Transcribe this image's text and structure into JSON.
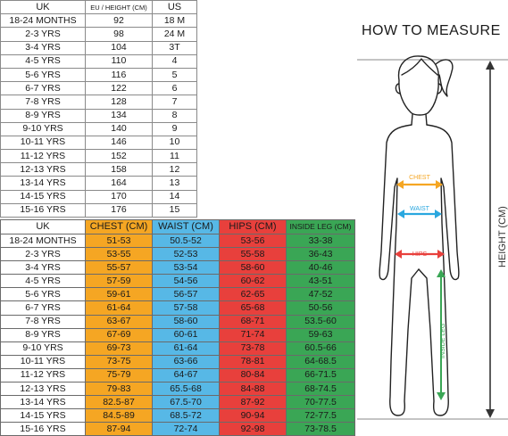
{
  "size_table": {
    "headers": [
      "UK",
      "EU / HEIGHT (CM)",
      "US"
    ],
    "rows": [
      [
        "18-24 MONTHS",
        "92",
        "18 M"
      ],
      [
        "2-3 YRS",
        "98",
        "24 M"
      ],
      [
        "3-4 YRS",
        "104",
        "3T"
      ],
      [
        "4-5 YRS",
        "110",
        "4"
      ],
      [
        "5-6 YRS",
        "116",
        "5"
      ],
      [
        "6-7 YRS",
        "122",
        "6"
      ],
      [
        "7-8 YRS",
        "128",
        "7"
      ],
      [
        "8-9 YRS",
        "134",
        "8"
      ],
      [
        "9-10 YRS",
        "140",
        "9"
      ],
      [
        "10-11 YRS",
        "146",
        "10"
      ],
      [
        "11-12 YRS",
        "152",
        "11"
      ],
      [
        "12-13 YRS",
        "158",
        "12"
      ],
      [
        "13-14 YRS",
        "164",
        "13"
      ],
      [
        "14-15 YRS",
        "170",
        "14"
      ],
      [
        "15-16 YRS",
        "176",
        "15"
      ]
    ]
  },
  "measure_table": {
    "headers": [
      "UK",
      "CHEST (CM)",
      "WAIST (CM)",
      "HIPS (CM)",
      "INSIDE LEG (CM)"
    ],
    "rows": [
      [
        "18-24 MONTHS",
        "51-53",
        "50.5-52",
        "53-56",
        "33-38"
      ],
      [
        "2-3 YRS",
        "53-55",
        "52-53",
        "55-58",
        "36-43"
      ],
      [
        "3-4 YRS",
        "55-57",
        "53-54",
        "58-60",
        "40-46"
      ],
      [
        "4-5 YRS",
        "57-59",
        "54-56",
        "60-62",
        "43-51"
      ],
      [
        "5-6 YRS",
        "59-61",
        "56-57",
        "62-65",
        "47-52"
      ],
      [
        "6-7 YRS",
        "61-64",
        "57-58",
        "65-68",
        "50-56"
      ],
      [
        "7-8 YRS",
        "63-67",
        "58-60",
        "68-71",
        "53.5-60"
      ],
      [
        "8-9 YRS",
        "67-69",
        "60-61",
        "71-74",
        "59-63"
      ],
      [
        "9-10 YRS",
        "69-73",
        "61-64",
        "73-78",
        "60.5-66"
      ],
      [
        "10-11 YRS",
        "73-75",
        "63-66",
        "78-81",
        "64-68.5"
      ],
      [
        "11-12 YRS",
        "75-79",
        "64-67",
        "80-84",
        "66-71.5"
      ],
      [
        "12-13 YRS",
        "79-83",
        "65.5-68",
        "84-88",
        "68-74.5"
      ],
      [
        "13-14 YRS",
        "82.5-87",
        "67.5-70",
        "87-92",
        "70-77.5"
      ],
      [
        "14-15 YRS",
        "84.5-89",
        "68.5-72",
        "90-94",
        "72-77.5"
      ],
      [
        "15-16 YRS",
        "87-94",
        "72-74",
        "92-98",
        "73-78.5"
      ]
    ]
  },
  "figure": {
    "title": "HOW TO MEASURE",
    "labels": {
      "chest": "CHEST",
      "waist": "WAIST",
      "hips": "HIPS",
      "inside_leg": "INSIDE LEG",
      "height": "HEIGHT (CM)"
    },
    "colors": {
      "chest": "#f5a623",
      "waist": "#2aa7df",
      "hips": "#e8403c",
      "inside_leg": "#3aa655",
      "height": "#333333"
    }
  }
}
